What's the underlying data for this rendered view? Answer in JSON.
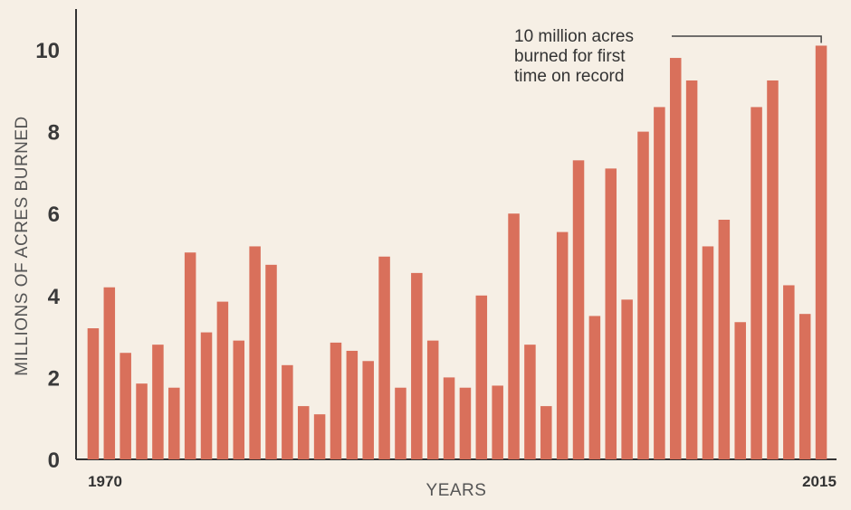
{
  "chart_data": {
    "type": "bar",
    "ylabel": "MILLIONS OF ACRES BURNED",
    "xlabel": "YEARS",
    "ylim": [
      0,
      10.5
    ],
    "yticks": [
      0,
      2,
      4,
      6,
      8,
      10
    ],
    "x_start_label": "1970",
    "x_end_label": "2015",
    "x": [
      1970,
      1971,
      1972,
      1973,
      1974,
      1975,
      1976,
      1977,
      1978,
      1979,
      1980,
      1981,
      1982,
      1983,
      1984,
      1985,
      1986,
      1987,
      1988,
      1989,
      1990,
      1991,
      1992,
      1993,
      1994,
      1995,
      1996,
      1997,
      1998,
      1999,
      2000,
      2001,
      2002,
      2003,
      2004,
      2005,
      2006,
      2007,
      2008,
      2009,
      2010,
      2011,
      2012,
      2013,
      2014,
      2015
    ],
    "values": [
      3.2,
      4.2,
      2.6,
      1.85,
      2.8,
      1.75,
      5.05,
      3.1,
      3.85,
      2.9,
      5.2,
      4.75,
      2.3,
      1.3,
      1.1,
      2.85,
      2.65,
      2.4,
      4.95,
      1.75,
      4.55,
      2.9,
      2.0,
      1.75,
      4.0,
      1.8,
      6.0,
      2.8,
      1.3,
      5.55,
      7.3,
      3.5,
      7.1,
      3.9,
      8.0,
      8.6,
      9.8,
      9.25,
      5.2,
      5.85,
      3.35,
      8.6,
      9.25,
      4.25,
      3.55,
      10.1
    ],
    "bar_color": "#d9705b",
    "grid": false,
    "annotation": {
      "lines": [
        "10 million acres",
        "burned for first",
        "time on record"
      ],
      "target_year": 2015
    }
  }
}
